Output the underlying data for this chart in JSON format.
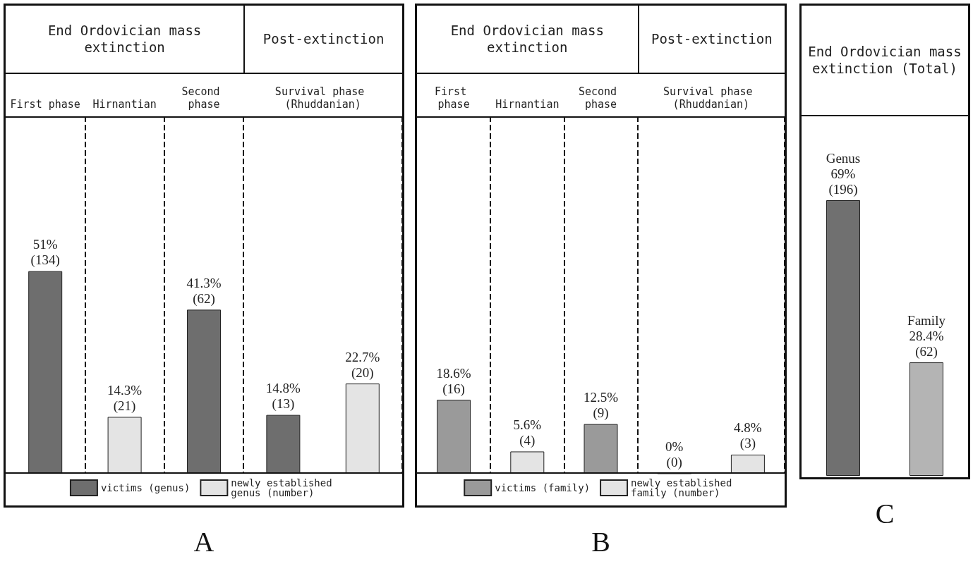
{
  "chart_data": [
    {
      "type": "bar",
      "title": "A",
      "annotations": [
        "End Ordovician mass extinction",
        "Post-extinction"
      ],
      "categories": [
        "First phase",
        "Hirnantian",
        "Second phase",
        "Survival phase (Rhuddanian)",
        null
      ],
      "ylim": [
        0,
        90
      ],
      "legend": "bottom",
      "series": [
        {
          "name": "victims (genus)",
          "color": "#6e6e6e",
          "values": [
            51,
            null,
            41.3,
            14.8,
            null
          ],
          "value_labels": [
            "51%\n(134)",
            null,
            "41.3%\n(62)",
            "14.8%\n(13)",
            null
          ]
        },
        {
          "name": "newly established genus (number)",
          "color": "#e4e4e4",
          "values": [
            null,
            14.3,
            null,
            null,
            22.7
          ],
          "value_labels": [
            null,
            "14.3%\n(21)",
            null,
            null,
            "22.7%\n(20)"
          ]
        }
      ]
    },
    {
      "type": "bar",
      "title": "B",
      "annotations": [
        "End Ordovician mass extinction",
        "Post-extinction"
      ],
      "categories": [
        "First phase",
        "Hirnantian",
        "Second phase",
        "Survival phase (Rhuddanian)",
        null
      ],
      "ylim": [
        0,
        90
      ],
      "legend": "bottom",
      "series": [
        {
          "name": "victims (family)",
          "color": "#9a9a9a",
          "values": [
            18.6,
            null,
            12.5,
            0,
            null
          ],
          "value_labels": [
            "18.6%\n(16)",
            null,
            "12.5%\n(9)",
            "0%\n(0)",
            null
          ]
        },
        {
          "name": "newly established family (number)",
          "color": "#e4e4e4",
          "values": [
            null,
            5.6,
            null,
            null,
            4.8
          ],
          "value_labels": [
            null,
            "5.6%\n(4)",
            null,
            null,
            "4.8%\n(3)"
          ]
        }
      ]
    },
    {
      "type": "bar",
      "title": "C",
      "annotations": [
        "End Ordovician mass extinction (Total)"
      ],
      "categories": [
        null,
        null
      ],
      "ylim": [
        0,
        90
      ],
      "colors": [
        "#707070",
        "#b4b4b4"
      ],
      "values": [
        69,
        28.4
      ],
      "value_labels": [
        "Genus\n69%\n(196)",
        "Family\n28.4%\n(62)"
      ]
    }
  ]
}
